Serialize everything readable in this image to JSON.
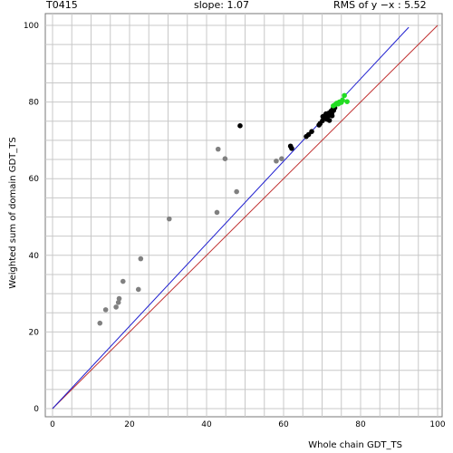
{
  "header": {
    "id": "T0415",
    "slope": "slope: 1.07",
    "rms": "RMS of  y −x : 5.52"
  },
  "chart_data": {
    "type": "scatter",
    "xlabel": "Whole chain GDT_TS",
    "ylabel": "Weighted sum of domain GDT_TS",
    "xlim": [
      0,
      100
    ],
    "ylim": [
      0,
      100
    ],
    "xticks": [
      0,
      20,
      40,
      60,
      80,
      100
    ],
    "yticks": [
      0,
      20,
      40,
      60,
      80,
      100
    ],
    "grid": true,
    "lines": [
      {
        "kind": "identity",
        "color": "#c03030",
        "from": [
          0,
          0
        ],
        "to": [
          100,
          100
        ]
      },
      {
        "kind": "fit",
        "color": "#2020d0",
        "from": [
          0,
          0
        ],
        "to": [
          92.5,
          99.5
        ]
      }
    ],
    "series": [
      {
        "color": "#808080",
        "points": [
          [
            12.3,
            22.3
          ],
          [
            13.8,
            25.8
          ],
          [
            16.5,
            26.5
          ],
          [
            17.1,
            27.7
          ],
          [
            17.3,
            28.7
          ],
          [
            18.3,
            33.2
          ],
          [
            22.3,
            31.1
          ],
          [
            22.9,
            39.1
          ],
          [
            30.3,
            49.5
          ],
          [
            42.7,
            51.2
          ],
          [
            43.0,
            67.7
          ],
          [
            44.8,
            65.2
          ],
          [
            47.8,
            56.6
          ],
          [
            58.1,
            64.6
          ],
          [
            59.5,
            65.2
          ]
        ]
      },
      {
        "color": "#000000",
        "points": [
          [
            48.7,
            73.8
          ],
          [
            61.8,
            68.5
          ],
          [
            62.1,
            67.9
          ],
          [
            65.9,
            71.0
          ],
          [
            66.5,
            71.5
          ],
          [
            67.3,
            72.3
          ],
          [
            69.2,
            74.0
          ],
          [
            69.5,
            74.4
          ],
          [
            70.1,
            75.1
          ],
          [
            70.2,
            76.2
          ],
          [
            70.8,
            76.5
          ],
          [
            71.0,
            76.9
          ],
          [
            71.3,
            75.5
          ],
          [
            71.5,
            76.3
          ],
          [
            71.7,
            77.1
          ],
          [
            72.0,
            76.6
          ],
          [
            72.3,
            77.6
          ],
          [
            72.5,
            77.0
          ],
          [
            72.8,
            78.2
          ],
          [
            73.0,
            77.8
          ],
          [
            73.3,
            78.5
          ],
          [
            70.6,
            75.8
          ],
          [
            71.9,
            75.2
          ],
          [
            72.6,
            76.4
          ]
        ]
      },
      {
        "color": "#22dd22",
        "points": [
          [
            72.9,
            79.0
          ],
          [
            73.4,
            79.3
          ],
          [
            73.8,
            79.7
          ],
          [
            74.2,
            79.5
          ],
          [
            74.5,
            80.0
          ],
          [
            75.0,
            79.9
          ],
          [
            75.3,
            80.5
          ],
          [
            75.8,
            81.7
          ],
          [
            76.5,
            80.1
          ]
        ]
      }
    ]
  }
}
